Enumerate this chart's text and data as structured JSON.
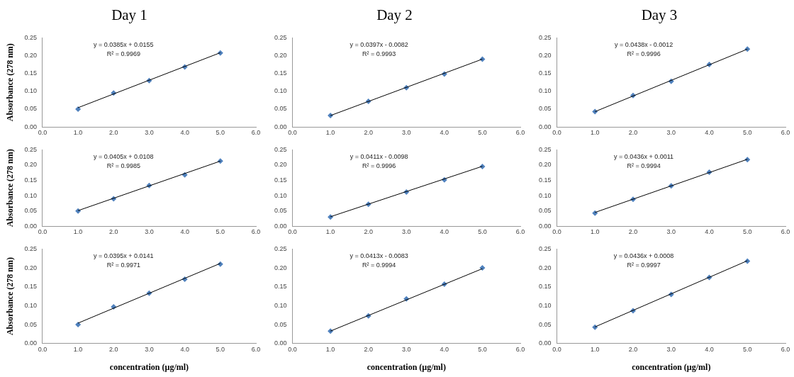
{
  "chart_data": [
    {
      "type": "scatter",
      "title": "Day 1",
      "ylabel": "Absorbance (278 nm)",
      "xlim": [
        0,
        6
      ],
      "ylim": [
        0,
        0.25
      ],
      "xticks": [
        {
          "value": 0,
          "label": "0.0"
        },
        {
          "value": 1,
          "label": "1.0"
        },
        {
          "value": 2,
          "label": "2.0"
        },
        {
          "value": 3,
          "label": "3.0"
        },
        {
          "value": 4,
          "label": "4.0"
        },
        {
          "value": 5,
          "label": "5.0"
        },
        {
          "value": 6,
          "label": "6.0"
        }
      ],
      "yticks": [
        {
          "value": 0,
          "label": "0.00"
        },
        {
          "value": 0.05,
          "label": "0.05"
        },
        {
          "value": 0.1,
          "label": "0.10"
        },
        {
          "value": 0.15,
          "label": "0.15"
        },
        {
          "value": 0.2,
          "label": "0.20"
        },
        {
          "value": 0.25,
          "label": "0.25"
        }
      ],
      "grid": false,
      "legend": false,
      "annotations": [
        "y = 0.0385x + 0.0155",
        "R² = 0.9969"
      ],
      "series": [
        {
          "color": "#4f81bd",
          "marker": "diamond",
          "x": [
            1,
            2,
            3,
            4,
            5
          ],
          "values": [
            0.05,
            0.095,
            0.13,
            0.168,
            0.207
          ]
        },
        {
          "type": "line",
          "marker": "none",
          "color": "#000000",
          "x": [
            1,
            5
          ],
          "values": [
            0.054,
            0.208
          ]
        }
      ]
    },
    {
      "type": "scatter",
      "title": "Day 2",
      "xlim": [
        0,
        6
      ],
      "ylim": [
        0,
        0.25
      ],
      "xticks": [
        {
          "value": 0,
          "label": "0.0"
        },
        {
          "value": 1,
          "label": "1.0"
        },
        {
          "value": 2,
          "label": "2.0"
        },
        {
          "value": 3,
          "label": "3.0"
        },
        {
          "value": 4,
          "label": "4.0"
        },
        {
          "value": 5,
          "label": "5.0"
        },
        {
          "value": 6,
          "label": "6.0"
        }
      ],
      "yticks": [
        {
          "value": 0,
          "label": "0.00"
        },
        {
          "value": 0.05,
          "label": "0.05"
        },
        {
          "value": 0.1,
          "label": "0.10"
        },
        {
          "value": 0.15,
          "label": "0.15"
        },
        {
          "value": 0.2,
          "label": "0.20"
        },
        {
          "value": 0.25,
          "label": "0.25"
        }
      ],
      "grid": false,
      "legend": false,
      "annotations": [
        "y = 0.0397x - 0.0082",
        "R² = 0.9993"
      ],
      "series": [
        {
          "color": "#4f81bd",
          "marker": "diamond",
          "x": [
            1,
            2,
            3,
            4,
            5
          ],
          "values": [
            0.032,
            0.072,
            0.11,
            0.148,
            0.19
          ]
        },
        {
          "type": "line",
          "marker": "none",
          "color": "#000000",
          "x": [
            1,
            5
          ],
          "values": [
            0.032,
            0.19
          ]
        }
      ]
    },
    {
      "type": "scatter",
      "title": "Day 3",
      "xlim": [
        0,
        6
      ],
      "ylim": [
        0,
        0.25
      ],
      "xticks": [
        {
          "value": 0,
          "label": "0.0"
        },
        {
          "value": 1,
          "label": "1.0"
        },
        {
          "value": 2,
          "label": "2.0"
        },
        {
          "value": 3,
          "label": "3.0"
        },
        {
          "value": 4,
          "label": "4.0"
        },
        {
          "value": 5,
          "label": "5.0"
        },
        {
          "value": 6,
          "label": "6.0"
        }
      ],
      "yticks": [
        {
          "value": 0,
          "label": "0.00"
        },
        {
          "value": 0.05,
          "label": "0.05"
        },
        {
          "value": 0.1,
          "label": "0.10"
        },
        {
          "value": 0.15,
          "label": "0.15"
        },
        {
          "value": 0.2,
          "label": "0.20"
        },
        {
          "value": 0.25,
          "label": "0.25"
        }
      ],
      "grid": false,
      "legend": false,
      "annotations": [
        "y = 0.0438x - 0.0012",
        "R² = 0.9996"
      ],
      "series": [
        {
          "color": "#4f81bd",
          "marker": "diamond",
          "x": [
            1,
            2,
            3,
            4,
            5
          ],
          "values": [
            0.043,
            0.088,
            0.128,
            0.175,
            0.218
          ]
        },
        {
          "type": "line",
          "marker": "none",
          "color": "#000000",
          "x": [
            1,
            5
          ],
          "values": [
            0.043,
            0.218
          ]
        }
      ]
    },
    {
      "type": "scatter",
      "ylabel": "Absorbance (278 nm)",
      "xlim": [
        0,
        6
      ],
      "ylim": [
        0,
        0.25
      ],
      "xticks": [
        {
          "value": 0,
          "label": "0.0"
        },
        {
          "value": 1,
          "label": "1.0"
        },
        {
          "value": 2,
          "label": "2.0"
        },
        {
          "value": 3,
          "label": "3.0"
        },
        {
          "value": 4,
          "label": "4.0"
        },
        {
          "value": 5,
          "label": "5.0"
        },
        {
          "value": 6,
          "label": "6.0"
        }
      ],
      "yticks": [
        {
          "value": 0,
          "label": "0.00"
        },
        {
          "value": 0.05,
          "label": "0.05"
        },
        {
          "value": 0.1,
          "label": "0.10"
        },
        {
          "value": 0.15,
          "label": "0.15"
        },
        {
          "value": 0.2,
          "label": "0.20"
        },
        {
          "value": 0.25,
          "label": "0.25"
        }
      ],
      "grid": false,
      "legend": false,
      "annotations": [
        "y = 0.0405x + 0.0108",
        "R² = 0.9985"
      ],
      "series": [
        {
          "color": "#4f81bd",
          "marker": "diamond",
          "x": [
            1,
            2,
            3,
            4,
            5
          ],
          "values": [
            0.05,
            0.09,
            0.133,
            0.168,
            0.213
          ]
        },
        {
          "type": "line",
          "marker": "none",
          "color": "#000000",
          "x": [
            1,
            5
          ],
          "values": [
            0.051,
            0.213
          ]
        }
      ]
    },
    {
      "type": "scatter",
      "xlim": [
        0,
        6
      ],
      "ylim": [
        0,
        0.25
      ],
      "xticks": [
        {
          "value": 0,
          "label": "0.0"
        },
        {
          "value": 1,
          "label": "1.0"
        },
        {
          "value": 2,
          "label": "2.0"
        },
        {
          "value": 3,
          "label": "3.0"
        },
        {
          "value": 4,
          "label": "4.0"
        },
        {
          "value": 5,
          "label": "5.0"
        },
        {
          "value": 6,
          "label": "6.0"
        }
      ],
      "yticks": [
        {
          "value": 0,
          "label": "0.00"
        },
        {
          "value": 0.05,
          "label": "0.05"
        },
        {
          "value": 0.1,
          "label": "0.10"
        },
        {
          "value": 0.15,
          "label": "0.15"
        },
        {
          "value": 0.2,
          "label": "0.20"
        },
        {
          "value": 0.25,
          "label": "0.25"
        }
      ],
      "grid": false,
      "legend": false,
      "annotations": [
        "y = 0.0411x - 0.0098",
        "R² = 0.9996"
      ],
      "series": [
        {
          "color": "#4f81bd",
          "marker": "diamond",
          "x": [
            1,
            2,
            3,
            4,
            5
          ],
          "values": [
            0.03,
            0.072,
            0.112,
            0.152,
            0.195
          ]
        },
        {
          "type": "line",
          "marker": "none",
          "color": "#000000",
          "x": [
            1,
            5
          ],
          "values": [
            0.031,
            0.196
          ]
        }
      ]
    },
    {
      "type": "scatter",
      "xlim": [
        0,
        6
      ],
      "ylim": [
        0,
        0.25
      ],
      "xticks": [
        {
          "value": 0,
          "label": "0.0"
        },
        {
          "value": 1,
          "label": "1.0"
        },
        {
          "value": 2,
          "label": "2.0"
        },
        {
          "value": 3,
          "label": "3.0"
        },
        {
          "value": 4,
          "label": "4.0"
        },
        {
          "value": 5,
          "label": "5.0"
        },
        {
          "value": 6,
          "label": "6.0"
        }
      ],
      "yticks": [
        {
          "value": 0,
          "label": "0.00"
        },
        {
          "value": 0.05,
          "label": "0.05"
        },
        {
          "value": 0.1,
          "label": "0.10"
        },
        {
          "value": 0.15,
          "label": "0.15"
        },
        {
          "value": 0.2,
          "label": "0.20"
        },
        {
          "value": 0.25,
          "label": "0.25"
        }
      ],
      "grid": false,
      "legend": false,
      "annotations": [
        "y = 0.0436x + 0.0011",
        "R² = 0.9994"
      ],
      "series": [
        {
          "color": "#4f81bd",
          "marker": "diamond",
          "x": [
            1,
            2,
            3,
            4,
            5
          ],
          "values": [
            0.043,
            0.088,
            0.132,
            0.177,
            0.218
          ]
        },
        {
          "type": "line",
          "marker": "none",
          "color": "#000000",
          "x": [
            1,
            5
          ],
          "values": [
            0.045,
            0.219
          ]
        }
      ]
    },
    {
      "type": "scatter",
      "ylabel": "Absorbance (278 nm)",
      "xlabel": "concentration (µg/ml)",
      "xlim": [
        0,
        6
      ],
      "ylim": [
        0,
        0.25
      ],
      "xticks": [
        {
          "value": 0,
          "label": "0.0"
        },
        {
          "value": 1,
          "label": "1.0"
        },
        {
          "value": 2,
          "label": "2.0"
        },
        {
          "value": 3,
          "label": "3.0"
        },
        {
          "value": 4,
          "label": "4.0"
        },
        {
          "value": 5,
          "label": "5.0"
        },
        {
          "value": 6,
          "label": "6.0"
        }
      ],
      "yticks": [
        {
          "value": 0,
          "label": "0.00"
        },
        {
          "value": 0.05,
          "label": "0.05"
        },
        {
          "value": 0.1,
          "label": "0.10"
        },
        {
          "value": 0.15,
          "label": "0.15"
        },
        {
          "value": 0.2,
          "label": "0.20"
        },
        {
          "value": 0.25,
          "label": "0.25"
        }
      ],
      "grid": false,
      "legend": false,
      "annotations": [
        "y = 0.0395x + 0.0141",
        "R² = 0.9971"
      ],
      "series": [
        {
          "color": "#4f81bd",
          "marker": "diamond",
          "x": [
            1,
            2,
            3,
            4,
            5
          ],
          "values": [
            0.05,
            0.097,
            0.133,
            0.17,
            0.21
          ]
        },
        {
          "type": "line",
          "marker": "none",
          "color": "#000000",
          "x": [
            1,
            5
          ],
          "values": [
            0.054,
            0.212
          ]
        }
      ]
    },
    {
      "type": "scatter",
      "xlabel": "concentration (µg/ml)",
      "xlim": [
        0,
        6
      ],
      "ylim": [
        0,
        0.25
      ],
      "xticks": [
        {
          "value": 0,
          "label": "0.0"
        },
        {
          "value": 1,
          "label": "1.0"
        },
        {
          "value": 2,
          "label": "2.0"
        },
        {
          "value": 3,
          "label": "3.0"
        },
        {
          "value": 4,
          "label": "4.0"
        },
        {
          "value": 5,
          "label": "5.0"
        },
        {
          "value": 6,
          "label": "6.0"
        }
      ],
      "yticks": [
        {
          "value": 0,
          "label": "0.00"
        },
        {
          "value": 0.05,
          "label": "0.05"
        },
        {
          "value": 0.1,
          "label": "0.10"
        },
        {
          "value": 0.15,
          "label": "0.15"
        },
        {
          "value": 0.2,
          "label": "0.20"
        },
        {
          "value": 0.25,
          "label": "0.25"
        }
      ],
      "grid": false,
      "legend": false,
      "annotations": [
        "y = 0.0413x - 0.0083",
        "R² = 0.9994"
      ],
      "series": [
        {
          "color": "#4f81bd",
          "marker": "diamond",
          "x": [
            1,
            2,
            3,
            4,
            5
          ],
          "values": [
            0.033,
            0.073,
            0.118,
            0.157,
            0.2
          ]
        },
        {
          "type": "line",
          "marker": "none",
          "color": "#000000",
          "x": [
            1,
            5
          ],
          "values": [
            0.033,
            0.198
          ]
        }
      ]
    },
    {
      "type": "scatter",
      "xlabel": "concentration (µg/ml)",
      "xlim": [
        0,
        6
      ],
      "ylim": [
        0,
        0.25
      ],
      "xticks": [
        {
          "value": 0,
          "label": "0.0"
        },
        {
          "value": 1,
          "label": "1.0"
        },
        {
          "value": 2,
          "label": "2.0"
        },
        {
          "value": 3,
          "label": "3.0"
        },
        {
          "value": 4,
          "label": "4.0"
        },
        {
          "value": 5,
          "label": "5.0"
        },
        {
          "value": 6,
          "label": "6.0"
        }
      ],
      "yticks": [
        {
          "value": 0,
          "label": "0.00"
        },
        {
          "value": 0.05,
          "label": "0.05"
        },
        {
          "value": 0.1,
          "label": "0.10"
        },
        {
          "value": 0.15,
          "label": "0.15"
        },
        {
          "value": 0.2,
          "label": "0.20"
        },
        {
          "value": 0.25,
          "label": "0.25"
        }
      ],
      "grid": false,
      "legend": false,
      "annotations": [
        "y = 0.0436x + 0.0008",
        "R² = 0.9997"
      ],
      "series": [
        {
          "color": "#4f81bd",
          "marker": "diamond",
          "x": [
            1,
            2,
            3,
            4,
            5
          ],
          "values": [
            0.043,
            0.087,
            0.13,
            0.175,
            0.218
          ]
        },
        {
          "type": "line",
          "marker": "none",
          "color": "#000000",
          "x": [
            1,
            5
          ],
          "values": [
            0.044,
            0.219
          ]
        }
      ]
    }
  ]
}
